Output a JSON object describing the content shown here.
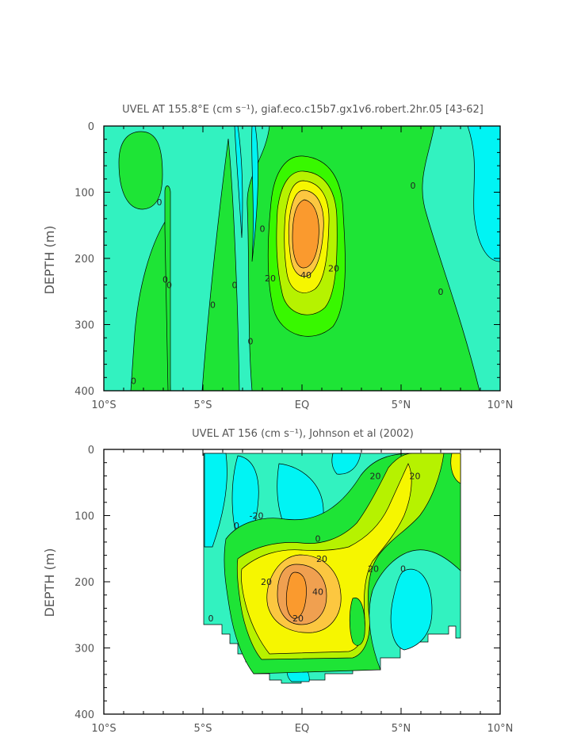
{
  "chart_data": [
    {
      "type": "heatmap",
      "title": "UVEL AT 155.8°E (cm s⁻¹), giaf.eco.c15b7.gx1v6.robert.2hr.05 [43-62]",
      "ylabel": "DEPTH (m)",
      "xlabel": "",
      "x_tick_labels": [
        "10°S",
        "5°S",
        "EQ",
        "5°N",
        "10°N"
      ],
      "x_tick_values": [
        -10,
        -5,
        0,
        5,
        10
      ],
      "y_tick_labels": [
        "0",
        "100",
        "200",
        "300",
        "400"
      ],
      "y_tick_values": [
        0,
        100,
        200,
        300,
        400
      ],
      "xlim": [
        -10,
        10
      ],
      "ylim": [
        400,
        0
      ],
      "contour_labels": [
        {
          "text": "0",
          "lat": -7.2,
          "depth": 115
        },
        {
          "text": "0",
          "lat": -6.9,
          "depth": 232
        },
        {
          "text": "0",
          "lat": -6.7,
          "depth": 240
        },
        {
          "text": "0",
          "lat": -4.5,
          "depth": 270
        },
        {
          "text": "0",
          "lat": -3.4,
          "depth": 240
        },
        {
          "text": "0",
          "lat": -2.6,
          "depth": 325
        },
        {
          "text": "0",
          "lat": -8.5,
          "depth": 385
        },
        {
          "text": "0",
          "lat": -2.0,
          "depth": 155
        },
        {
          "text": "0",
          "lat": 5.6,
          "depth": 90
        },
        {
          "text": "0",
          "lat": 7.0,
          "depth": 250
        },
        {
          "text": "20",
          "lat": -1.6,
          "depth": 230
        },
        {
          "text": "40",
          "lat": 0.2,
          "depth": 225
        },
        {
          "text": "20",
          "lat": 1.6,
          "depth": 215
        }
      ]
    },
    {
      "type": "heatmap",
      "title": "UVEL AT 156 (cm s⁻¹), Johnson et al (2002)",
      "ylabel": "DEPTH (m)",
      "xlabel": "",
      "x_tick_labels": [
        "10°S",
        "5°S",
        "EQ",
        "5°N",
        "10°N"
      ],
      "x_tick_values": [
        -10,
        -5,
        0,
        5,
        10
      ],
      "y_tick_labels": [
        "0",
        "100",
        "200",
        "300",
        "400"
      ],
      "y_tick_values": [
        0,
        100,
        200,
        300,
        400
      ],
      "xlim": [
        -10,
        10
      ],
      "ylim": [
        400,
        0
      ],
      "contour_labels": [
        {
          "text": "20",
          "lat": 3.7,
          "depth": 40
        },
        {
          "text": "20",
          "lat": 5.7,
          "depth": 40
        },
        {
          "text": "-20",
          "lat": -2.3,
          "depth": 100
        },
        {
          "text": "0",
          "lat": -3.3,
          "depth": 115
        },
        {
          "text": "0",
          "lat": 0.8,
          "depth": 135
        },
        {
          "text": "20",
          "lat": 1.0,
          "depth": 165
        },
        {
          "text": "20",
          "lat": 3.6,
          "depth": 180
        },
        {
          "text": "0",
          "lat": 5.1,
          "depth": 180
        },
        {
          "text": "20",
          "lat": -1.8,
          "depth": 200
        },
        {
          "text": "40",
          "lat": 0.8,
          "depth": 215
        },
        {
          "text": "20",
          "lat": -0.2,
          "depth": 255
        },
        {
          "text": "0",
          "lat": -4.6,
          "depth": 255
        }
      ]
    }
  ]
}
